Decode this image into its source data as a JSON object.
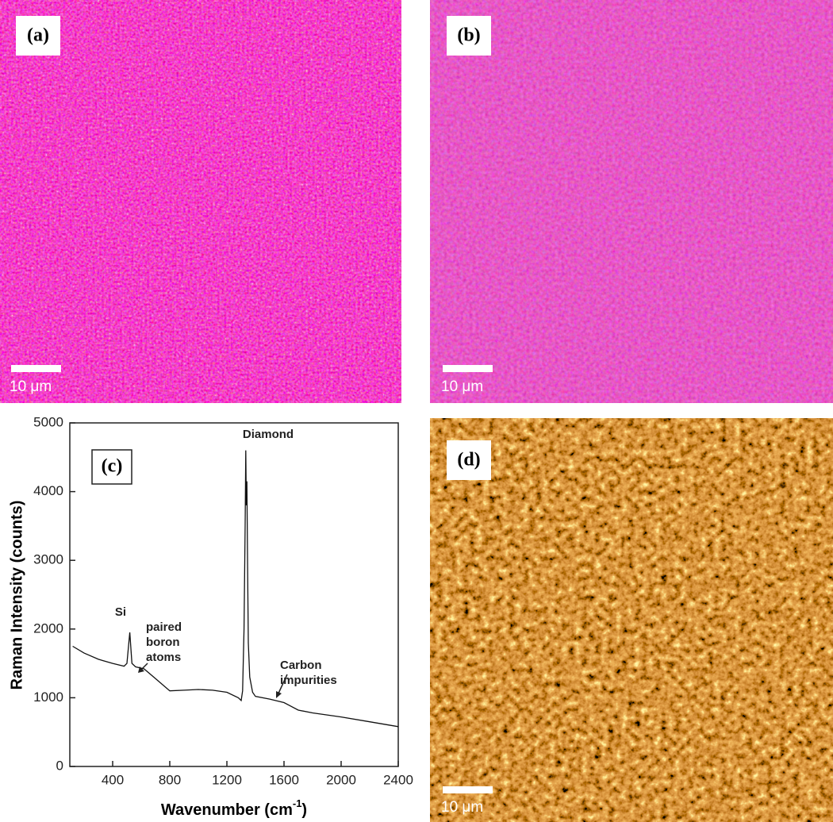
{
  "panels": [
    {
      "label": "(a)",
      "scale_bar": "10 μm"
    },
    {
      "label": "(b)",
      "scale_bar": "10 μm"
    },
    {
      "label": "(d)",
      "scale_bar": "10 μm"
    }
  ],
  "chart_data": {
    "type": "line",
    "panel_label": "(c)",
    "y_label": "Raman Intensity (counts)",
    "x_label": [
      "Wavenumber (cm",
      "-1",
      ")"
    ],
    "color": "#111111",
    "x": [
      120,
      200,
      300,
      400,
      480,
      500,
      520,
      535,
      560,
      620,
      700,
      800,
      900,
      1000,
      1100,
      1200,
      1280,
      1300,
      1310,
      1320,
      1328,
      1332,
      1336,
      1340,
      1345,
      1350,
      1360,
      1380,
      1400,
      1500,
      1600,
      1700,
      1800,
      2000,
      2200,
      2400
    ],
    "values": [
      1750,
      1650,
      1560,
      1500,
      1460,
      1500,
      1950,
      1500,
      1450,
      1420,
      1280,
      1100,
      1110,
      1120,
      1110,
      1080,
      1000,
      960,
      1100,
      2000,
      3500,
      4600,
      3800,
      4150,
      2900,
      1800,
      1300,
      1080,
      1020,
      980,
      930,
      820,
      780,
      720,
      650,
      580
    ],
    "xlim": [
      100,
      2400
    ],
    "ylim": [
      0,
      5000
    ],
    "xticks": [
      400,
      800,
      1200,
      1600,
      2000,
      2400
    ],
    "yticks": [
      0,
      1000,
      2000,
      3000,
      4000,
      5000
    ],
    "annotations": [
      {
        "lines": [
          "Diamond"
        ]
      },
      {
        "lines": [
          "Si"
        ]
      },
      {
        "lines": [
          "paired",
          "boron",
          "atoms"
        ]
      },
      {
        "lines": [
          "Carbon",
          "impurities"
        ]
      }
    ]
  }
}
